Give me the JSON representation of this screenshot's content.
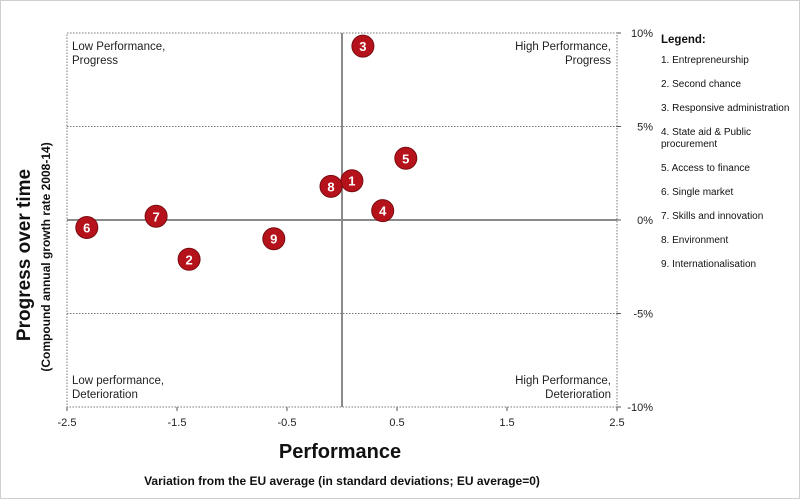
{
  "chart_data": {
    "type": "scatter",
    "xlabel": "Performance",
    "xsublabel": "Variation from the EU average (in standard deviations; EU average=0)",
    "ylabel": "Progress over time",
    "ysublabel": "(Compound annual growth rate 2008-14)",
    "xlim": [
      -2.5,
      2.5
    ],
    "ylim": [
      -10,
      10
    ],
    "xticks": [
      "-2.5",
      "-1.5",
      "-0.5",
      "0.5",
      "1.5",
      "2.5"
    ],
    "xtick_values": [
      -2.5,
      -1.5,
      -0.5,
      0.5,
      1.5,
      2.5
    ],
    "yticks": [
      "10%",
      "5%",
      "0%",
      "-5%",
      "-10%"
    ],
    "ytick_values": [
      10,
      5,
      0,
      -5,
      -10
    ],
    "quadrants": {
      "top_left": [
        "Low Performance,",
        "Progress"
      ],
      "top_right": [
        "High Performance,",
        "Progress"
      ],
      "bottom_left": [
        "Low performance,",
        "Deterioration"
      ],
      "bottom_right": [
        "High Performance,",
        "Deterioration"
      ]
    },
    "points": [
      {
        "label": "1",
        "x": 0.09,
        "y": 2.1
      },
      {
        "label": "2",
        "x": -1.39,
        "y": -2.1
      },
      {
        "label": "3",
        "x": 0.19,
        "y": 9.3
      },
      {
        "label": "4",
        "x": 0.37,
        "y": 0.5
      },
      {
        "label": "5",
        "x": 0.58,
        "y": 3.3
      },
      {
        "label": "6",
        "x": -2.32,
        "y": -0.4
      },
      {
        "label": "7",
        "x": -1.69,
        "y": 0.2
      },
      {
        "label": "8",
        "x": -0.1,
        "y": 1.8
      },
      {
        "label": "9",
        "x": -0.62,
        "y": -1.0
      }
    ],
    "marker_color": "#b5121b",
    "grid": false,
    "legend_position": "right"
  },
  "legend": {
    "title": "Legend:",
    "items": [
      "1. Entrepreneurship",
      "2. Second chance",
      "3. Responsive administration",
      "4. State aid & Public procurement",
      "5. Access to finance",
      "6. Single market",
      "7. Skills and innovation",
      "8. Environment",
      "9. Internationalisation"
    ]
  }
}
